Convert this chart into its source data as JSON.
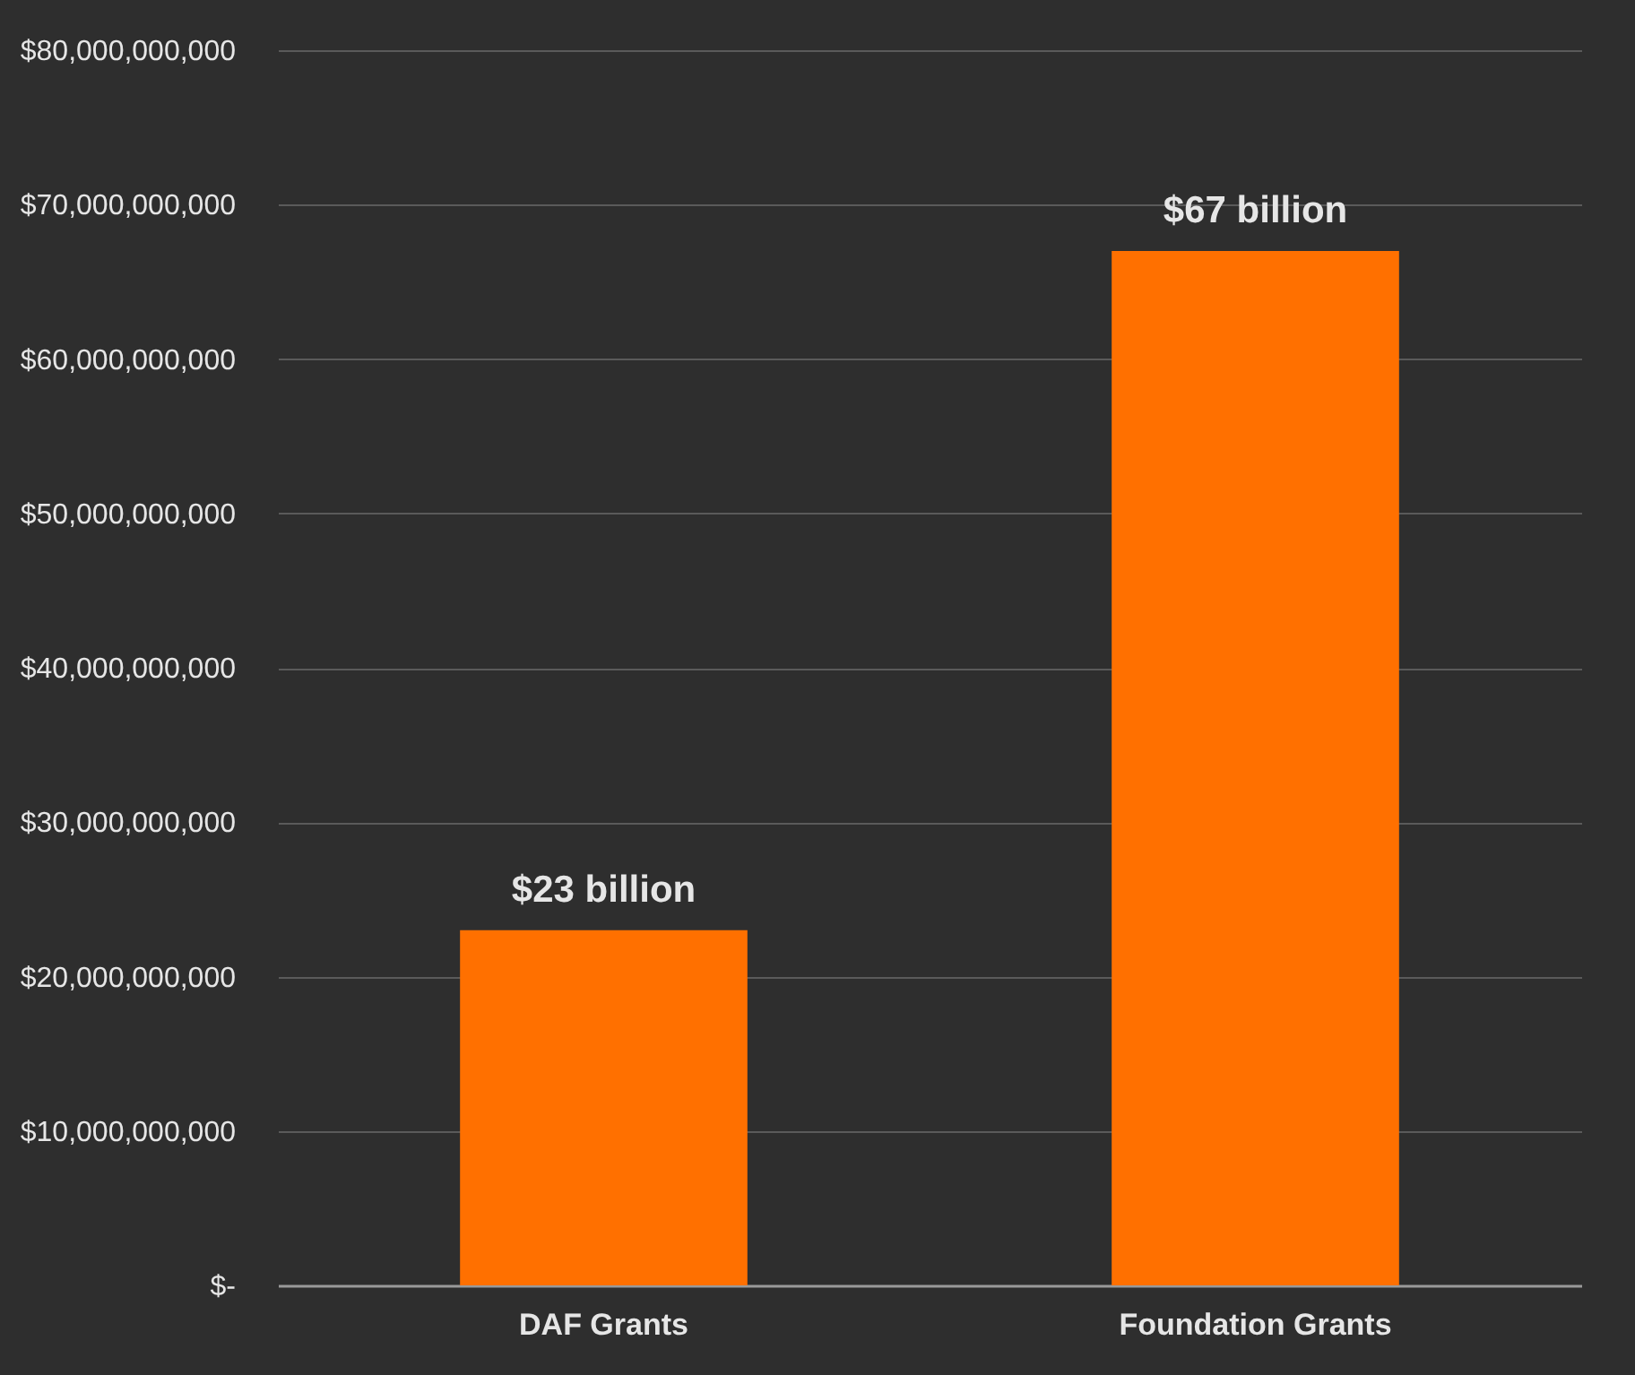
{
  "chart_data": {
    "type": "bar",
    "categories": [
      "DAF Grants",
      "Foundation Grants"
    ],
    "values": [
      23000000000,
      67000000000
    ],
    "value_labels": [
      "$23 billion",
      "$67 billion"
    ],
    "color": "#ff7000",
    "ylim": [
      0,
      80000000000
    ],
    "yticks": [
      {
        "value": 0,
        "label": "$-"
      },
      {
        "value": 10000000000,
        "label": "$10,000,000,000"
      },
      {
        "value": 20000000000,
        "label": "$20,000,000,000"
      },
      {
        "value": 30000000000,
        "label": "$30,000,000,000"
      },
      {
        "value": 40000000000,
        "label": "$40,000,000,000"
      },
      {
        "value": 50000000000,
        "label": "$50,000,000,000"
      },
      {
        "value": 60000000000,
        "label": "$60,000,000,000"
      },
      {
        "value": 70000000000,
        "label": "$70,000,000,000"
      },
      {
        "value": 80000000000,
        "label": "$80,000,000,000"
      }
    ],
    "grid": "y"
  }
}
